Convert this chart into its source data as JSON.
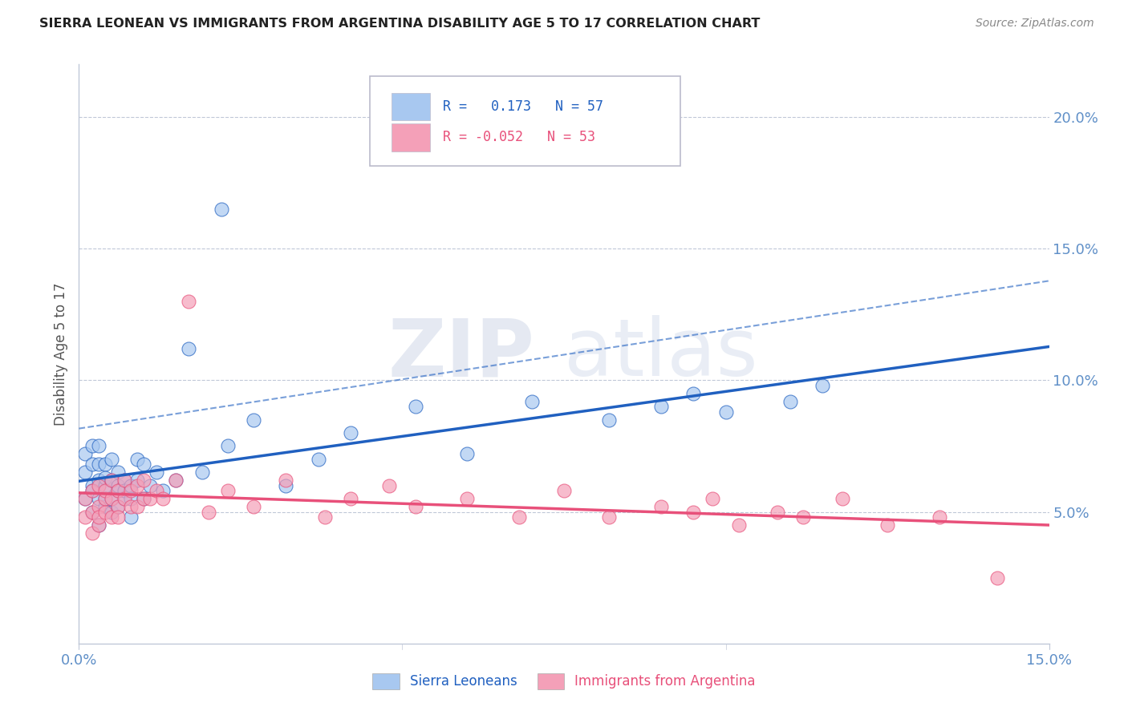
{
  "title": "SIERRA LEONEAN VS IMMIGRANTS FROM ARGENTINA DISABILITY AGE 5 TO 17 CORRELATION CHART",
  "source_text": "Source: ZipAtlas.com",
  "ylabel": "Disability Age 5 to 17",
  "xlabel": "",
  "xlim": [
    0.0,
    0.15
  ],
  "ylim": [
    0.0,
    0.22
  ],
  "xticks": [
    0.0,
    0.05,
    0.1,
    0.15
  ],
  "xticklabels": [
    "0.0%",
    "",
    "",
    "15.0%"
  ],
  "yticks": [
    0.05,
    0.1,
    0.15,
    0.2
  ],
  "yticklabels": [
    "5.0%",
    "10.0%",
    "15.0%",
    "20.0%"
  ],
  "sierra_leone_color": "#a8c8f0",
  "argentina_color": "#f4a0b8",
  "sierra_leone_line_color": "#2060c0",
  "argentina_line_color": "#e8507a",
  "background_color": "#ffffff",
  "grid_color": "#c0c8d8",
  "tick_color": "#6090c8",
  "sierra_leoneans_x": [
    0.001,
    0.001,
    0.001,
    0.002,
    0.002,
    0.002,
    0.002,
    0.002,
    0.003,
    0.003,
    0.003,
    0.003,
    0.003,
    0.004,
    0.004,
    0.004,
    0.004,
    0.004,
    0.005,
    0.005,
    0.005,
    0.005,
    0.006,
    0.006,
    0.006,
    0.006,
    0.007,
    0.007,
    0.007,
    0.008,
    0.008,
    0.008,
    0.009,
    0.009,
    0.01,
    0.01,
    0.011,
    0.012,
    0.013,
    0.015,
    0.017,
    0.019,
    0.022,
    0.023,
    0.027,
    0.032,
    0.037,
    0.042,
    0.052,
    0.06,
    0.07,
    0.082,
    0.09,
    0.095,
    0.1,
    0.11,
    0.115
  ],
  "sierra_leoneans_y": [
    0.065,
    0.072,
    0.055,
    0.06,
    0.068,
    0.075,
    0.05,
    0.058,
    0.055,
    0.062,
    0.045,
    0.068,
    0.075,
    0.052,
    0.06,
    0.068,
    0.055,
    0.063,
    0.055,
    0.062,
    0.05,
    0.07,
    0.058,
    0.065,
    0.052,
    0.06,
    0.055,
    0.062,
    0.058,
    0.06,
    0.048,
    0.055,
    0.062,
    0.07,
    0.055,
    0.068,
    0.06,
    0.065,
    0.058,
    0.062,
    0.112,
    0.065,
    0.165,
    0.075,
    0.085,
    0.06,
    0.07,
    0.08,
    0.09,
    0.072,
    0.092,
    0.085,
    0.09,
    0.095,
    0.088,
    0.092,
    0.098
  ],
  "argentina_x": [
    0.001,
    0.001,
    0.002,
    0.002,
    0.002,
    0.003,
    0.003,
    0.003,
    0.003,
    0.004,
    0.004,
    0.004,
    0.005,
    0.005,
    0.005,
    0.006,
    0.006,
    0.006,
    0.007,
    0.007,
    0.008,
    0.008,
    0.009,
    0.009,
    0.01,
    0.01,
    0.011,
    0.012,
    0.013,
    0.015,
    0.017,
    0.02,
    0.023,
    0.027,
    0.032,
    0.038,
    0.042,
    0.048,
    0.052,
    0.06,
    0.068,
    0.075,
    0.082,
    0.09,
    0.095,
    0.098,
    0.102,
    0.108,
    0.112,
    0.118,
    0.125,
    0.133,
    0.142
  ],
  "argentina_y": [
    0.048,
    0.055,
    0.042,
    0.05,
    0.058,
    0.045,
    0.052,
    0.06,
    0.048,
    0.055,
    0.05,
    0.058,
    0.048,
    0.055,
    0.062,
    0.052,
    0.058,
    0.048,
    0.055,
    0.062,
    0.052,
    0.058,
    0.052,
    0.06,
    0.055,
    0.062,
    0.055,
    0.058,
    0.055,
    0.062,
    0.13,
    0.05,
    0.058,
    0.052,
    0.062,
    0.048,
    0.055,
    0.06,
    0.052,
    0.055,
    0.048,
    0.058,
    0.048,
    0.052,
    0.05,
    0.055,
    0.045,
    0.05,
    0.048,
    0.055,
    0.045,
    0.048,
    0.025
  ]
}
